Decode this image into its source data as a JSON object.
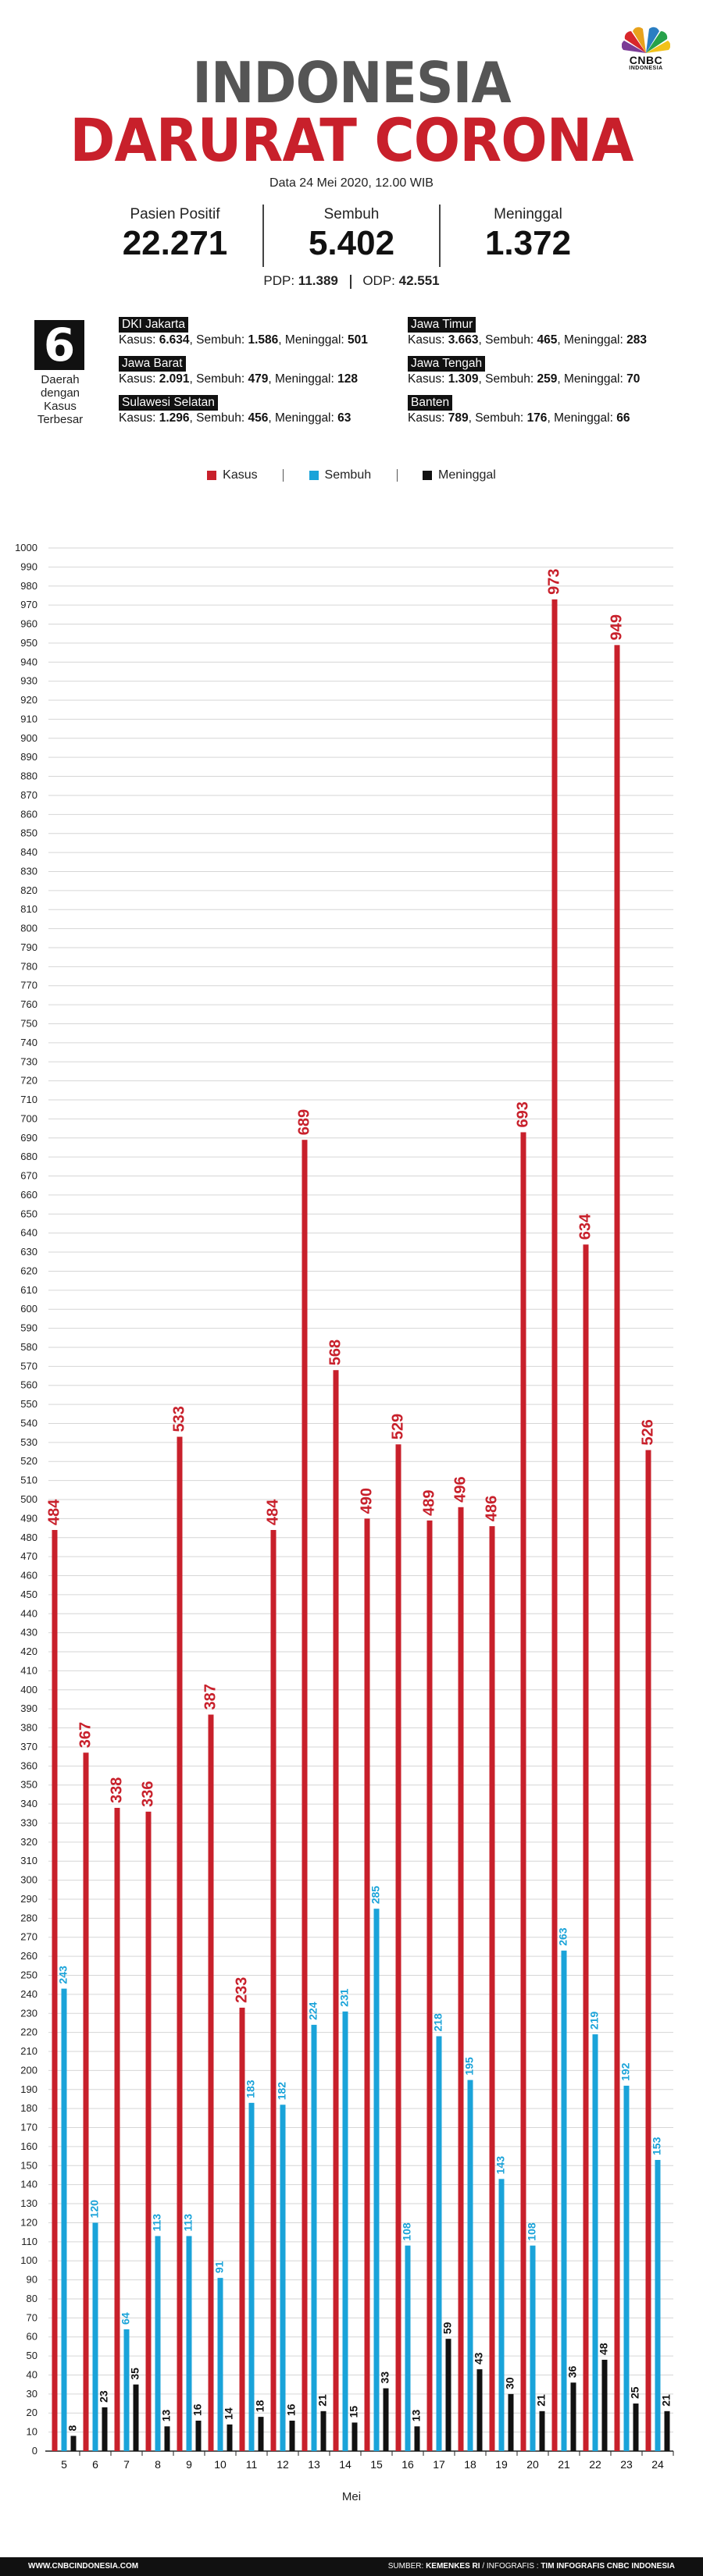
{
  "header": {
    "logo_text": "CNBC",
    "logo_sub": "INDONESIA",
    "title_line1": "INDONESIA",
    "title_line2": "DARURAT CORONA",
    "date": "Data 24 Mei 2020, 12.00 WIB"
  },
  "stats": [
    {
      "label": "Pasien Positif",
      "value": "22.271"
    },
    {
      "label": "Sembuh",
      "value": "5.402"
    },
    {
      "label": "Meninggal",
      "value": "1.372"
    }
  ],
  "pdp": {
    "pdp_label": "PDP:",
    "pdp_value": "11.389",
    "odp_label": "ODP:",
    "odp_value": "42.551"
  },
  "regions_box": {
    "number": "6",
    "label_line1": "Daerah",
    "label_line2": "dengan",
    "label_line3": "Kasus",
    "label_line4": "Terbesar"
  },
  "regions": [
    {
      "name": "DKI Jakarta",
      "kasus": "6.634",
      "sembuh": "1.586",
      "meninggal": "501"
    },
    {
      "name": "Jawa Barat",
      "kasus": "2.091",
      "sembuh": "479",
      "meninggal": "128"
    },
    {
      "name": "Sulawesi Selatan",
      "kasus": "1.296",
      "sembuh": "456",
      "meninggal": "63"
    },
    {
      "name": "Jawa Timur",
      "kasus": "3.663",
      "sembuh": "465",
      "meninggal": "283"
    },
    {
      "name": "Jawa Tengah",
      "kasus": "1.309",
      "sembuh": "259",
      "meninggal": "70"
    },
    {
      "name": "Banten",
      "kasus": "789",
      "sembuh": "176",
      "meninggal": "66"
    }
  ],
  "region_labels": {
    "kasus": "Kasus:",
    "sembuh": "Sembuh:",
    "meninggal": "Meninggal:"
  },
  "colors": {
    "kasus": "#c8202b",
    "sembuh": "#1aa3d9",
    "meninggal": "#111111",
    "grid": "#d6d6d6"
  },
  "chart_data": {
    "type": "bar",
    "xlabel": "Mei",
    "ylabel": "",
    "ylim": [
      0,
      1000
    ],
    "ytick_step": 10,
    "grid": true,
    "legend_position": "top-center",
    "categories": [
      "5",
      "6",
      "7",
      "8",
      "9",
      "10",
      "11",
      "12",
      "13",
      "14",
      "15",
      "16",
      "17",
      "18",
      "19",
      "20",
      "21",
      "22",
      "23",
      "24"
    ],
    "series": [
      {
        "name": "Kasus",
        "color": "#c8202b",
        "values": [
          484,
          367,
          338,
          336,
          533,
          387,
          233,
          484,
          689,
          568,
          490,
          529,
          489,
          496,
          486,
          693,
          973,
          634,
          949,
          526
        ]
      },
      {
        "name": "Sembuh",
        "color": "#1aa3d9",
        "values": [
          243,
          120,
          64,
          113,
          113,
          91,
          183,
          182,
          224,
          231,
          285,
          108,
          218,
          195,
          143,
          108,
          263,
          219,
          192,
          153
        ]
      },
      {
        "name": "Meninggal",
        "color": "#111111",
        "values": [
          8,
          23,
          35,
          13,
          16,
          14,
          18,
          16,
          21,
          15,
          33,
          13,
          59,
          43,
          30,
          21,
          36,
          48,
          25,
          21
        ]
      }
    ]
  },
  "footer": {
    "website": "WWW.CNBCINDONESIA.COM",
    "source_label": "SUMBER:",
    "source": "KEMENKES RI",
    "infographic_label": "/ INFOGRAFIS :",
    "infographic": "TIM INFOGRAFIS CNBC INDONESIA"
  }
}
